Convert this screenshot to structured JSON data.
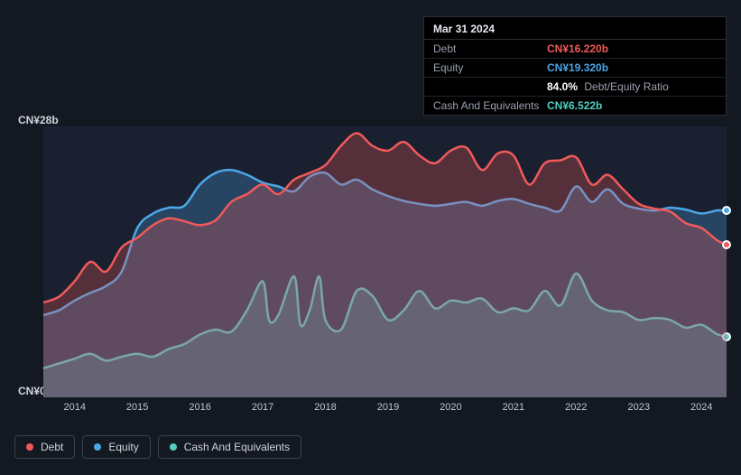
{
  "background_color": "#131821",
  "plot_background": "#1a2030",
  "y_axis": {
    "max_label": "CN¥28b",
    "min_label": "CN¥0",
    "ymin": 0,
    "ymax": 28,
    "label_fontsize": 12,
    "label_color": "#d0d4dc"
  },
  "x_axis": {
    "ticks": [
      "2014",
      "2015",
      "2016",
      "2017",
      "2018",
      "2019",
      "2020",
      "2021",
      "2022",
      "2023",
      "2024"
    ],
    "label_fontsize": 11,
    "label_color": "#c0c6d0",
    "domain_start": 2013.5,
    "domain_end": 2024.4
  },
  "tooltip": {
    "date": "Mar 31 2024",
    "rows": [
      {
        "label": "Debt",
        "value": "CN¥16.220b",
        "color": "#f05a5a"
      },
      {
        "label": "Equity",
        "value": "CN¥19.320b",
        "color": "#4aa7e8"
      },
      {
        "label": "",
        "value": "84.0%",
        "suffix": "Debt/Equity Ratio",
        "color": "#ffffff"
      },
      {
        "label": "Cash And Equivalents",
        "value": "CN¥6.522b",
        "color": "#4fd0c0"
      }
    ]
  },
  "legend": {
    "items": [
      {
        "label": "Debt",
        "color": "#f05a5a"
      },
      {
        "label": "Equity",
        "color": "#4aa7e8"
      },
      {
        "label": "Cash And Equivalents",
        "color": "#4fd0c0"
      }
    ]
  },
  "series": {
    "type": "area",
    "line_width": 2.5,
    "fill_opacity": 0.28,
    "end_dot_radius": 5,
    "debt": {
      "color": "#f05a5a",
      "points": [
        [
          2013.5,
          9.8
        ],
        [
          2013.75,
          10.4
        ],
        [
          2014.0,
          12.0
        ],
        [
          2014.25,
          14.0
        ],
        [
          2014.5,
          13.0
        ],
        [
          2014.75,
          15.5
        ],
        [
          2015.0,
          16.5
        ],
        [
          2015.25,
          17.8
        ],
        [
          2015.5,
          18.5
        ],
        [
          2015.75,
          18.2
        ],
        [
          2016.0,
          17.8
        ],
        [
          2016.25,
          18.3
        ],
        [
          2016.5,
          20.2
        ],
        [
          2016.75,
          21.0
        ],
        [
          2017.0,
          22.0
        ],
        [
          2017.25,
          21.0
        ],
        [
          2017.5,
          22.5
        ],
        [
          2017.75,
          23.2
        ],
        [
          2018.0,
          24.0
        ],
        [
          2018.25,
          26.0
        ],
        [
          2018.5,
          27.3
        ],
        [
          2018.75,
          26.0
        ],
        [
          2019.0,
          25.5
        ],
        [
          2019.25,
          26.4
        ],
        [
          2019.5,
          25.0
        ],
        [
          2019.75,
          24.2
        ],
        [
          2020.0,
          25.5
        ],
        [
          2020.25,
          25.8
        ],
        [
          2020.5,
          23.5
        ],
        [
          2020.75,
          25.2
        ],
        [
          2021.0,
          25.0
        ],
        [
          2021.25,
          22.0
        ],
        [
          2021.5,
          24.2
        ],
        [
          2021.75,
          24.5
        ],
        [
          2022.0,
          24.8
        ],
        [
          2022.25,
          22.0
        ],
        [
          2022.5,
          23.0
        ],
        [
          2022.75,
          21.5
        ],
        [
          2023.0,
          20.0
        ],
        [
          2023.25,
          19.5
        ],
        [
          2023.5,
          19.2
        ],
        [
          2023.75,
          18.0
        ],
        [
          2024.0,
          17.5
        ],
        [
          2024.25,
          16.22
        ],
        [
          2024.4,
          15.8
        ]
      ]
    },
    "equity": {
      "color": "#4aa7e8",
      "points": [
        [
          2013.5,
          8.5
        ],
        [
          2013.75,
          9.0
        ],
        [
          2014.0,
          10.0
        ],
        [
          2014.25,
          10.8
        ],
        [
          2014.5,
          11.5
        ],
        [
          2014.75,
          13.0
        ],
        [
          2015.0,
          17.5
        ],
        [
          2015.25,
          19.0
        ],
        [
          2015.5,
          19.6
        ],
        [
          2015.75,
          19.8
        ],
        [
          2016.0,
          22.0
        ],
        [
          2016.25,
          23.2
        ],
        [
          2016.5,
          23.5
        ],
        [
          2016.75,
          23.0
        ],
        [
          2017.0,
          22.2
        ],
        [
          2017.25,
          21.8
        ],
        [
          2017.5,
          21.3
        ],
        [
          2017.75,
          22.8
        ],
        [
          2018.0,
          23.2
        ],
        [
          2018.25,
          22.0
        ],
        [
          2018.5,
          22.5
        ],
        [
          2018.75,
          21.5
        ],
        [
          2019.0,
          20.8
        ],
        [
          2019.25,
          20.3
        ],
        [
          2019.5,
          20.0
        ],
        [
          2019.75,
          19.8
        ],
        [
          2020.0,
          20.0
        ],
        [
          2020.25,
          20.2
        ],
        [
          2020.5,
          19.8
        ],
        [
          2020.75,
          20.3
        ],
        [
          2021.0,
          20.5
        ],
        [
          2021.25,
          20.0
        ],
        [
          2021.5,
          19.6
        ],
        [
          2021.75,
          19.3
        ],
        [
          2022.0,
          21.8
        ],
        [
          2022.25,
          20.2
        ],
        [
          2022.5,
          21.5
        ],
        [
          2022.75,
          20.0
        ],
        [
          2023.0,
          19.5
        ],
        [
          2023.25,
          19.3
        ],
        [
          2023.5,
          19.6
        ],
        [
          2023.75,
          19.4
        ],
        [
          2024.0,
          19.0
        ],
        [
          2024.25,
          19.32
        ],
        [
          2024.4,
          19.3
        ]
      ]
    },
    "cash": {
      "color": "#4fd0c0",
      "points": [
        [
          2013.5,
          3.0
        ],
        [
          2013.75,
          3.5
        ],
        [
          2014.0,
          4.0
        ],
        [
          2014.25,
          4.5
        ],
        [
          2014.5,
          3.8
        ],
        [
          2014.75,
          4.2
        ],
        [
          2015.0,
          4.5
        ],
        [
          2015.25,
          4.2
        ],
        [
          2015.5,
          5.0
        ],
        [
          2015.75,
          5.5
        ],
        [
          2016.0,
          6.5
        ],
        [
          2016.25,
          7.0
        ],
        [
          2016.5,
          6.8
        ],
        [
          2016.75,
          9.0
        ],
        [
          2017.0,
          12.0
        ],
        [
          2017.1,
          8.0
        ],
        [
          2017.25,
          8.5
        ],
        [
          2017.5,
          12.5
        ],
        [
          2017.6,
          7.5
        ],
        [
          2017.75,
          9.0
        ],
        [
          2017.9,
          12.5
        ],
        [
          2018.0,
          8.0
        ],
        [
          2018.25,
          7.0
        ],
        [
          2018.5,
          11.0
        ],
        [
          2018.75,
          10.5
        ],
        [
          2019.0,
          8.0
        ],
        [
          2019.25,
          9.0
        ],
        [
          2019.5,
          11.0
        ],
        [
          2019.75,
          9.2
        ],
        [
          2020.0,
          10.0
        ],
        [
          2020.25,
          9.8
        ],
        [
          2020.5,
          10.2
        ],
        [
          2020.75,
          8.8
        ],
        [
          2021.0,
          9.2
        ],
        [
          2021.25,
          9.0
        ],
        [
          2021.5,
          11.0
        ],
        [
          2021.75,
          9.5
        ],
        [
          2022.0,
          12.8
        ],
        [
          2022.25,
          10.0
        ],
        [
          2022.5,
          9.0
        ],
        [
          2022.75,
          8.8
        ],
        [
          2023.0,
          8.0
        ],
        [
          2023.25,
          8.2
        ],
        [
          2023.5,
          8.0
        ],
        [
          2023.75,
          7.2
        ],
        [
          2024.0,
          7.5
        ],
        [
          2024.25,
          6.522
        ],
        [
          2024.4,
          6.3
        ]
      ]
    }
  }
}
